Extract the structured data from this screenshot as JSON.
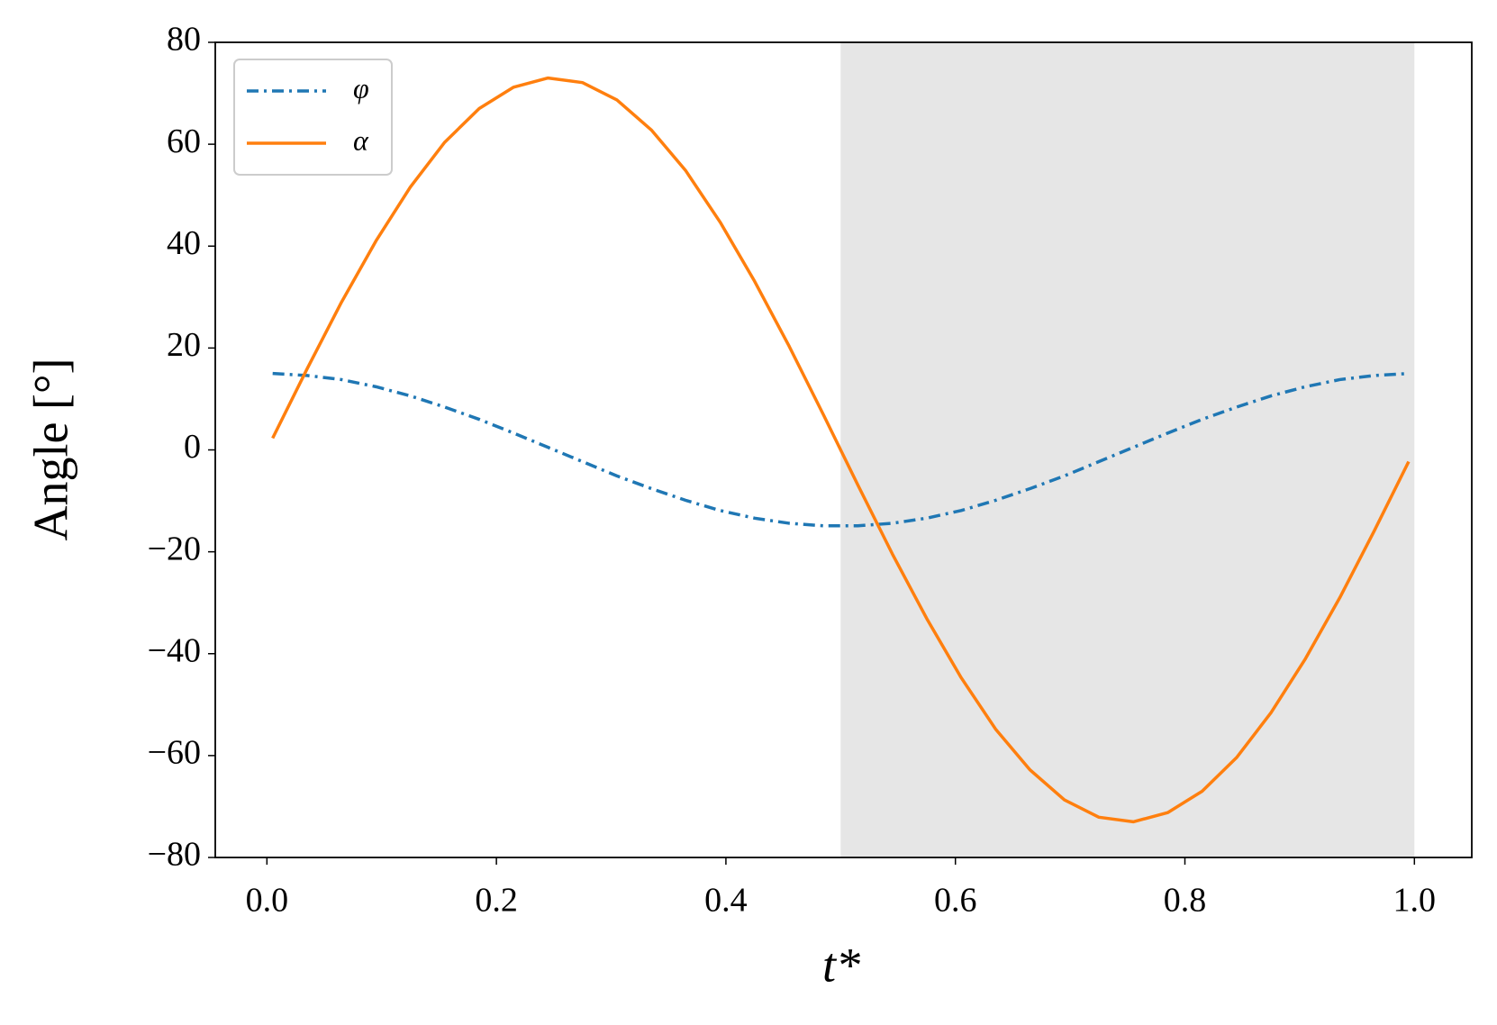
{
  "chart_data": {
    "type": "line",
    "xlabel": "t*",
    "ylabel": "Angle [°]",
    "x": [
      0.005,
      0.035,
      0.065,
      0.095,
      0.125,
      0.155,
      0.185,
      0.215,
      0.245,
      0.275,
      0.305,
      0.335,
      0.365,
      0.395,
      0.425,
      0.455,
      0.485,
      0.515,
      0.545,
      0.575,
      0.605,
      0.635,
      0.665,
      0.695,
      0.725,
      0.755,
      0.785,
      0.815,
      0.845,
      0.875,
      0.905,
      0.935,
      0.965,
      0.995
    ],
    "series": [
      {
        "name": "φ",
        "color": "#1f77b4",
        "linestyle": "dashdot",
        "values": [
          15.0,
          14.6,
          13.8,
          12.4,
          10.6,
          8.4,
          6.0,
          3.3,
          0.5,
          -2.3,
          -5.1,
          -7.6,
          -9.9,
          -11.9,
          -13.4,
          -14.4,
          -14.9,
          -14.9,
          -14.4,
          -13.4,
          -11.9,
          -9.9,
          -7.6,
          -5.1,
          -2.3,
          0.5,
          3.3,
          6.0,
          8.4,
          10.6,
          12.4,
          13.8,
          14.6,
          15.0
        ]
      },
      {
        "name": "α",
        "color": "#ff7f0e",
        "linestyle": "solid",
        "values": [
          2.3,
          15.9,
          29.0,
          41.0,
          51.6,
          60.4,
          67.0,
          71.2,
          73.0,
          72.1,
          68.7,
          62.8,
          54.8,
          44.7,
          33.1,
          20.4,
          6.9,
          -6.9,
          -20.4,
          -33.1,
          -44.7,
          -54.8,
          -62.8,
          -68.7,
          -72.1,
          -73.0,
          -71.2,
          -67.0,
          -60.4,
          -51.6,
          -41.0,
          -29.0,
          -15.9,
          -2.3
        ]
      }
    ],
    "shaded_span": [
      0.5,
      1.0
    ],
    "shaded_color": "#e6e6e6",
    "xlim": [
      -0.045,
      1.05
    ],
    "ylim": [
      -80,
      80
    ],
    "xticks": [
      {
        "value": 0,
        "label": "0.0"
      },
      0.2,
      0.4,
      0.6,
      0.8,
      {
        "value": 1,
        "label": "1.0"
      }
    ],
    "yticks": [
      {
        "value": -80,
        "label": "−80"
      },
      {
        "value": -60,
        "label": "−60"
      },
      {
        "value": -40,
        "label": "−40"
      },
      {
        "value": -20,
        "label": "−20"
      },
      0,
      20,
      40,
      60,
      80
    ],
    "legend": "upper left",
    "grid": false
  }
}
